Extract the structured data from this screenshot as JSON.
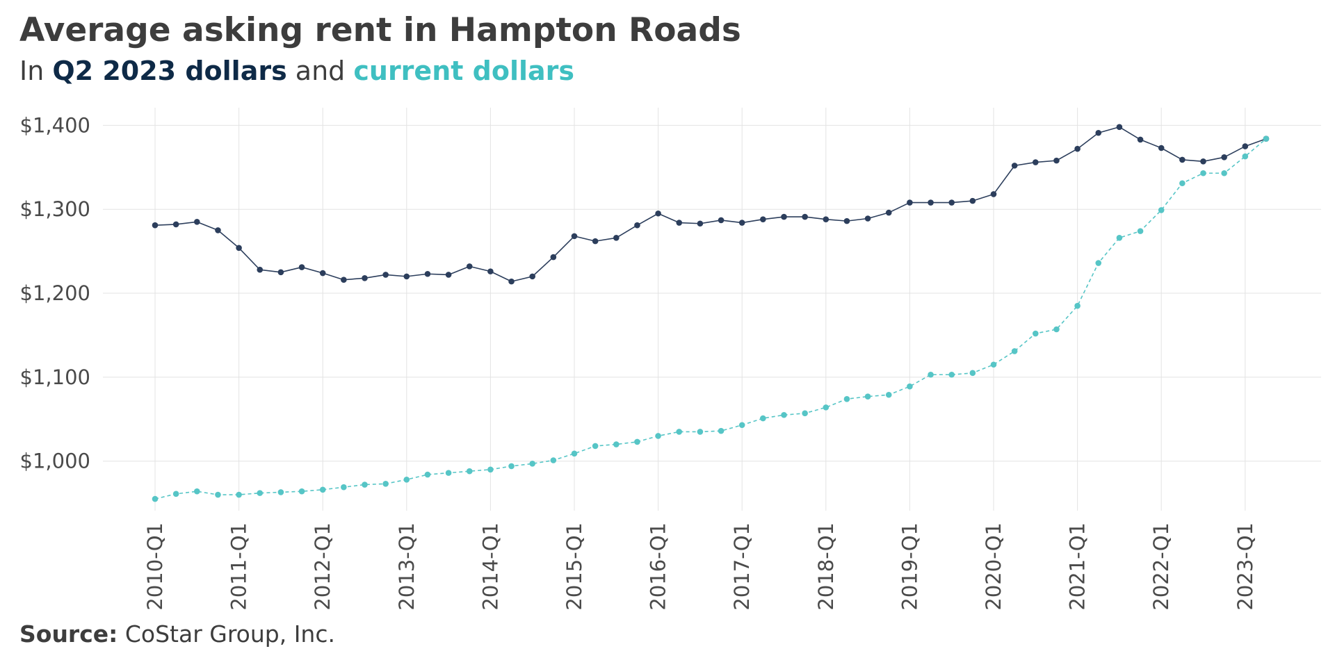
{
  "title": "Average asking rent in Hampton Roads",
  "subtitle": {
    "prefix": "In ",
    "series1": "Q2 2023 dollars",
    "middle": " and ",
    "series2": "current dollars"
  },
  "source": {
    "label": "Source:",
    "text": " CoStar Group, Inc."
  },
  "colors": {
    "real": "#2c3e5c",
    "nominal": "#56c5c6",
    "grid": "#e3e3e3",
    "text": "#3d3d3d"
  },
  "chart_data": {
    "type": "line",
    "title": "Average asking rent in Hampton Roads",
    "subtitle": "In Q2 2023 dollars and current dollars",
    "xlabel": "",
    "ylabel": "",
    "x": [
      "2010-Q1",
      "2010-Q2",
      "2010-Q3",
      "2010-Q4",
      "2011-Q1",
      "2011-Q2",
      "2011-Q3",
      "2011-Q4",
      "2012-Q1",
      "2012-Q2",
      "2012-Q3",
      "2012-Q4",
      "2013-Q1",
      "2013-Q2",
      "2013-Q3",
      "2013-Q4",
      "2014-Q1",
      "2014-Q2",
      "2014-Q3",
      "2014-Q4",
      "2015-Q1",
      "2015-Q2",
      "2015-Q3",
      "2015-Q4",
      "2016-Q1",
      "2016-Q2",
      "2016-Q3",
      "2016-Q4",
      "2017-Q1",
      "2017-Q2",
      "2017-Q3",
      "2017-Q4",
      "2018-Q1",
      "2018-Q2",
      "2018-Q3",
      "2018-Q4",
      "2019-Q1",
      "2019-Q2",
      "2019-Q3",
      "2019-Q4",
      "2020-Q1",
      "2020-Q2",
      "2020-Q3",
      "2020-Q4",
      "2021-Q1",
      "2021-Q2",
      "2021-Q3",
      "2021-Q4",
      "2022-Q1",
      "2022-Q2",
      "2022-Q3",
      "2022-Q4",
      "2023-Q1",
      "2023-Q2"
    ],
    "x_tick_labels": [
      "2010-Q1",
      "2011-Q1",
      "2012-Q1",
      "2013-Q1",
      "2014-Q1",
      "2015-Q1",
      "2016-Q1",
      "2017-Q1",
      "2018-Q1",
      "2019-Q1",
      "2020-Q1",
      "2021-Q1",
      "2022-Q1",
      "2023-Q1"
    ],
    "y_ticks": [
      1000,
      1100,
      1200,
      1300,
      1400
    ],
    "y_tick_labels": [
      "$1,000",
      "$1,100",
      "$1,200",
      "$1,300",
      "$1,400"
    ],
    "ylim": [
      941,
      1421
    ],
    "grid": true,
    "legend": "none (series named in subtitle)",
    "series": [
      {
        "name": "Q2 2023 dollars",
        "line_style": "solid",
        "values": [
          1281,
          1282,
          1285,
          1275,
          1254,
          1228,
          1225,
          1231,
          1224,
          1216,
          1218,
          1222,
          1220,
          1223,
          1222,
          1232,
          1226,
          1214,
          1220,
          1243,
          1268,
          1262,
          1266,
          1281,
          1295,
          1284,
          1283,
          1287,
          1284,
          1288,
          1291,
          1291,
          1288,
          1286,
          1289,
          1296,
          1308,
          1308,
          1308,
          1310,
          1318,
          1352,
          1356,
          1358,
          1372,
          1391,
          1398,
          1383,
          1373,
          1359,
          1357,
          1362,
          1375,
          1384
        ]
      },
      {
        "name": "current dollars",
        "line_style": "dashed",
        "values": [
          955,
          961,
          964,
          960,
          960,
          962,
          963,
          964,
          966,
          969,
          972,
          973,
          978,
          984,
          986,
          988,
          990,
          994,
          997,
          1001,
          1009,
          1018,
          1020,
          1023,
          1030,
          1035,
          1035,
          1036,
          1043,
          1051,
          1055,
          1057,
          1064,
          1074,
          1077,
          1079,
          1089,
          1103,
          1103,
          1105,
          1115,
          1131,
          1152,
          1157,
          1185,
          1236,
          1266,
          1274,
          1299,
          1331,
          1343,
          1343,
          1363,
          1384
        ]
      }
    ]
  }
}
